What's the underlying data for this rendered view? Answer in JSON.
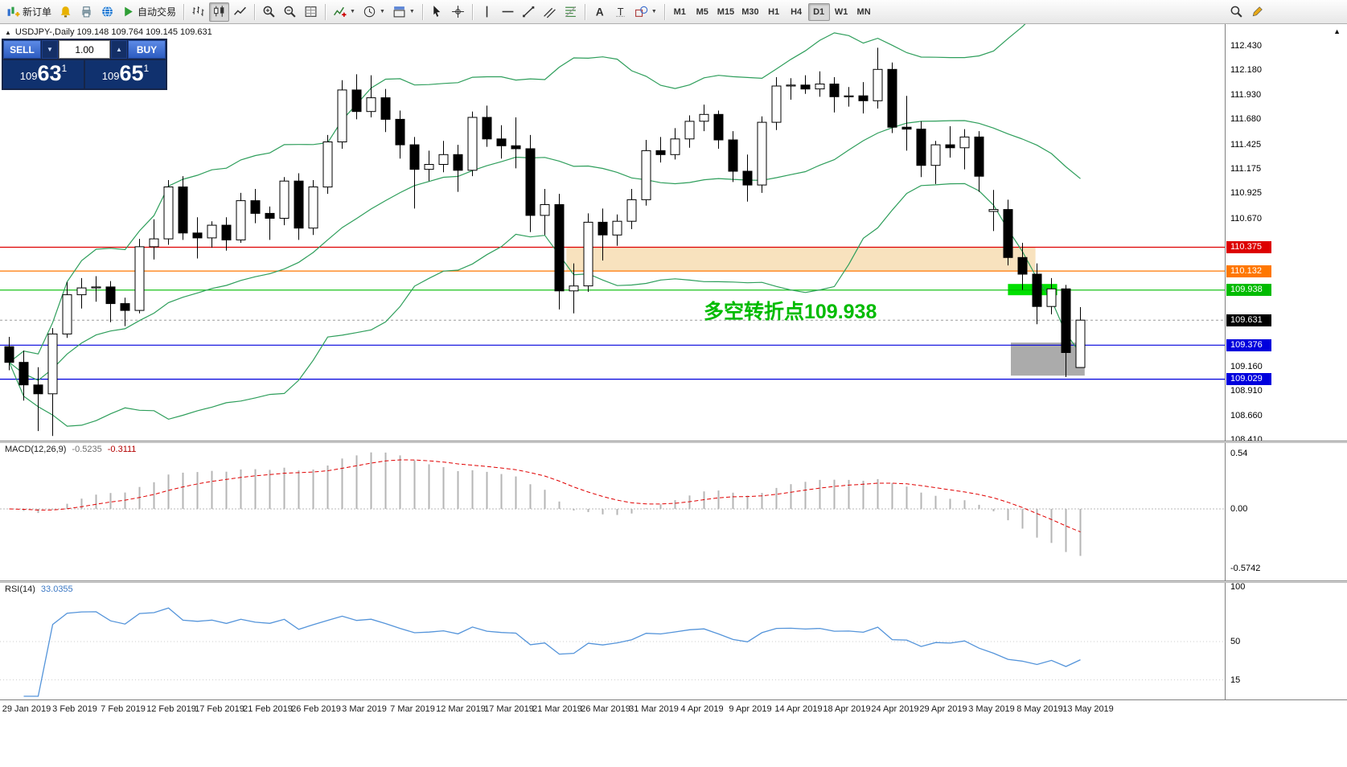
{
  "toolbar": {
    "caret_glyph": "▼",
    "groups": [
      {
        "name": "trade",
        "items": [
          {
            "name": "new-order",
            "icon": "new-order",
            "label": "新订单"
          },
          {
            "name": "alerts",
            "icon": "alert"
          },
          {
            "name": "print",
            "icon": "print"
          },
          {
            "name": "community",
            "icon": "globe"
          },
          {
            "name": "autotrading",
            "icon": "play",
            "label": "自动交易"
          }
        ]
      },
      {
        "name": "chart-type",
        "items": [
          {
            "name": "bar-chart",
            "icon": "bars"
          },
          {
            "name": "candlestick-chart",
            "icon": "candles",
            "active": true
          },
          {
            "name": "line-chart",
            "icon": "line"
          }
        ]
      },
      {
        "name": "zoom",
        "items": [
          {
            "name": "zoom-in",
            "icon": "zoom-in"
          },
          {
            "name": "zoom-out",
            "icon": "zoom-out"
          },
          {
            "name": "tile-windows",
            "icon": "grid"
          }
        ]
      },
      {
        "name": "insert",
        "items": [
          {
            "name": "indicators",
            "icon": "indicator",
            "caret": true
          },
          {
            "name": "periods",
            "icon": "clock",
            "caret": true
          },
          {
            "name": "templates",
            "icon": "template",
            "caret": true
          }
        ]
      },
      {
        "name": "pointer",
        "items": [
          {
            "name": "cursor",
            "icon": "cursor"
          },
          {
            "name": "crosshair",
            "icon": "crosshair"
          }
        ]
      },
      {
        "name": "draw",
        "items": [
          {
            "name": "vertical-line",
            "icon": "vline"
          },
          {
            "name": "horizontal-line",
            "icon": "hline"
          },
          {
            "name": "trendline",
            "icon": "trendline"
          },
          {
            "name": "equidistant-channel",
            "icon": "channel"
          },
          {
            "name": "fibonacci",
            "icon": "fibo"
          }
        ]
      },
      {
        "name": "text-tools",
        "items": [
          {
            "name": "text",
            "icon": "text-a"
          },
          {
            "name": "text-label",
            "icon": "label-t"
          },
          {
            "name": "shapes",
            "icon": "shapes",
            "caret": true
          }
        ]
      },
      {
        "name": "timeframes",
        "items": [
          {
            "name": "m1",
            "label": "M1"
          },
          {
            "name": "m5",
            "label": "M5"
          },
          {
            "name": "m15",
            "label": "M15"
          },
          {
            "name": "m30",
            "label": "M30"
          },
          {
            "name": "h1",
            "label": "H1"
          },
          {
            "name": "h4",
            "label": "H4"
          },
          {
            "name": "d1",
            "label": "D1",
            "active": true
          },
          {
            "name": "w1",
            "label": "W1"
          },
          {
            "name": "mn",
            "label": "MN"
          }
        ]
      },
      {
        "name": "right",
        "items": [
          {
            "name": "search",
            "icon": "magnifier"
          },
          {
            "name": "edit",
            "icon": "pencil"
          }
        ]
      }
    ]
  },
  "symbol_info": {
    "marker": "▲",
    "text": "USDJPY-,Daily  109.148 109.764 109.145 109.631"
  },
  "trade_panel": {
    "sell_label": "SELL",
    "buy_label": "BUY",
    "volume": "1.00",
    "down_glyph": "▼",
    "up_glyph": "▲",
    "sell_price_small": "109",
    "sell_price_big": "63",
    "sell_price_sup": "1",
    "buy_price_small": "109",
    "buy_price_big": "65",
    "buy_price_sup": "1"
  },
  "chart_data": {
    "type": "candlestick",
    "title": "USDJPY-,Daily",
    "ohlc_display": [
      "109.148",
      "109.764",
      "109.145",
      "109.631"
    ],
    "ylim": [
      108.35,
      112.65
    ],
    "x_labels": [
      "29 Jan 2019",
      "3 Feb 2019",
      "7 Feb 2019",
      "12 Feb 2019",
      "17 Feb 2019",
      "21 Feb 2019",
      "26 Feb 2019",
      "3 Mar 2019",
      "7 Mar 2019",
      "12 Mar 2019",
      "17 Mar 2019",
      "21 Mar 2019",
      "26 Mar 2019",
      "31 Mar 2019",
      "4 Apr 2019",
      "9 Apr 2019",
      "14 Apr 2019",
      "18 Apr 2019",
      "24 Apr 2019",
      "29 Apr 2019",
      "3 May 2019",
      "8 May 2019",
      "13 May 2019"
    ],
    "candles": [
      [
        109.36,
        109.46,
        109.12,
        109.2
      ],
      [
        109.2,
        109.32,
        108.81,
        108.97
      ],
      [
        108.97,
        109.15,
        108.5,
        108.88
      ],
      [
        108.88,
        109.55,
        108.45,
        109.49
      ],
      [
        109.49,
        110.02,
        109.45,
        109.89
      ],
      [
        109.89,
        110.06,
        109.75,
        109.96
      ],
      [
        109.96,
        110.08,
        109.82,
        109.97
      ],
      [
        109.97,
        110.03,
        109.61,
        109.8
      ],
      [
        109.8,
        109.86,
        109.57,
        109.73
      ],
      [
        109.73,
        110.46,
        109.7,
        110.38
      ],
      [
        110.38,
        110.66,
        110.25,
        110.46
      ],
      [
        110.46,
        111.06,
        110.4,
        110.99
      ],
      [
        110.99,
        111.1,
        110.45,
        110.52
      ],
      [
        110.52,
        110.68,
        110.26,
        110.47
      ],
      [
        110.47,
        110.64,
        110.37,
        110.6
      ],
      [
        110.6,
        110.68,
        110.34,
        110.45
      ],
      [
        110.45,
        110.93,
        110.42,
        110.85
      ],
      [
        110.85,
        110.97,
        110.62,
        110.72
      ],
      [
        110.72,
        110.79,
        110.45,
        110.67
      ],
      [
        110.67,
        111.09,
        110.6,
        111.05
      ],
      [
        111.05,
        111.13,
        110.45,
        110.57
      ],
      [
        110.57,
        111.06,
        110.5,
        110.99
      ],
      [
        110.99,
        111.52,
        110.92,
        111.45
      ],
      [
        111.45,
        112.08,
        111.38,
        111.98
      ],
      [
        111.98,
        112.14,
        111.68,
        111.76
      ],
      [
        111.76,
        112.13,
        111.7,
        111.9
      ],
      [
        111.9,
        111.99,
        111.55,
        111.68
      ],
      [
        111.68,
        111.77,
        111.28,
        111.42
      ],
      [
        111.42,
        111.5,
        110.77,
        111.17
      ],
      [
        111.17,
        111.36,
        111.05,
        111.22
      ],
      [
        111.22,
        111.46,
        111.14,
        111.32
      ],
      [
        111.32,
        111.42,
        110.94,
        111.16
      ],
      [
        111.16,
        111.76,
        111.1,
        111.7
      ],
      [
        111.7,
        111.82,
        111.4,
        111.48
      ],
      [
        111.48,
        111.62,
        111.28,
        111.41
      ],
      [
        111.41,
        111.7,
        111.18,
        111.38
      ],
      [
        111.38,
        111.52,
        110.53,
        110.7
      ],
      [
        110.7,
        110.97,
        110.5,
        110.81
      ],
      [
        110.81,
        110.92,
        109.74,
        109.93
      ],
      [
        109.93,
        110.21,
        109.7,
        109.98
      ],
      [
        109.98,
        110.72,
        109.92,
        110.63
      ],
      [
        110.63,
        110.77,
        110.24,
        110.5
      ],
      [
        110.5,
        110.71,
        110.39,
        110.64
      ],
      [
        110.64,
        110.97,
        110.56,
        110.86
      ],
      [
        110.86,
        111.47,
        110.8,
        111.36
      ],
      [
        111.36,
        111.5,
        111.24,
        111.32
      ],
      [
        111.32,
        111.59,
        111.27,
        111.48
      ],
      [
        111.48,
        111.72,
        111.39,
        111.66
      ],
      [
        111.66,
        111.83,
        111.56,
        111.73
      ],
      [
        111.73,
        111.77,
        111.38,
        111.47
      ],
      [
        111.47,
        111.56,
        111.04,
        111.15
      ],
      [
        111.15,
        111.32,
        110.84,
        111.01
      ],
      [
        111.01,
        111.71,
        110.93,
        111.65
      ],
      [
        111.65,
        112.11,
        111.57,
        112.02
      ],
      [
        112.02,
        112.1,
        111.88,
        112.03
      ],
      [
        112.03,
        112.13,
        111.94,
        111.99
      ],
      [
        111.99,
        112.17,
        111.91,
        112.04
      ],
      [
        112.04,
        112.11,
        111.75,
        111.91
      ],
      [
        111.91,
        112.01,
        111.81,
        111.92
      ],
      [
        111.92,
        112.06,
        111.74,
        111.87
      ],
      [
        111.87,
        112.41,
        111.79,
        112.19
      ],
      [
        112.19,
        112.26,
        111.54,
        111.6
      ],
      [
        111.6,
        111.92,
        111.36,
        111.58
      ],
      [
        111.58,
        111.66,
        111.09,
        111.21
      ],
      [
        111.21,
        111.46,
        111.02,
        111.42
      ],
      [
        111.42,
        111.61,
        111.29,
        111.39
      ],
      [
        111.39,
        111.58,
        111.17,
        111.5
      ],
      [
        111.5,
        111.56,
        110.94,
        111.1
      ],
      [
        110.74,
        110.96,
        110.54,
        110.76
      ],
      [
        110.76,
        110.86,
        110.19,
        110.27
      ],
      [
        110.27,
        110.42,
        109.94,
        110.1
      ],
      [
        110.1,
        110.21,
        109.59,
        109.77
      ],
      [
        109.77,
        110.06,
        109.69,
        109.95
      ],
      [
        109.95,
        109.99,
        109.05,
        109.3
      ],
      [
        109.148,
        109.764,
        109.145,
        109.631
      ]
    ],
    "indicators": {
      "bollinger": {
        "label": "Bollinger Bands(20,2)",
        "color": "#2E9E5B"
      }
    },
    "horizontal_lines": [
      {
        "price": 110.375,
        "label": "110.375",
        "color": "#DD0000"
      },
      {
        "price": 110.132,
        "label": "110.132",
        "color": "#FF7700"
      },
      {
        "price": 109.938,
        "label": "109.938",
        "color": "#00BB00"
      },
      {
        "price": 109.376,
        "label": "109.376",
        "color": "#0000DD"
      },
      {
        "price": 109.029,
        "label": "109.029",
        "color": "#0000DD"
      }
    ],
    "current_price": {
      "value": 109.631,
      "label": "109.631",
      "tag_color": "#000000"
    },
    "zones": [
      {
        "name": "supply-zone",
        "bar1": 38.8,
        "bar2": 71.2,
        "price_top": 110.375,
        "price_bottom": 110.132,
        "color": "#F8E2BE"
      },
      {
        "name": "target-box",
        "bar1": 69.5,
        "bar2": 74.6,
        "price_top": 109.402,
        "price_bottom": 109.065,
        "color": "#ABABAB"
      },
      {
        "name": "pivot-highlight",
        "bar1": 69.3,
        "bar2": 72.7,
        "price_top": 110.0,
        "price_bottom": 109.885,
        "color": "#00E000"
      }
    ],
    "annotation": {
      "text": "多空转折点109.938",
      "bar": 48.3,
      "price": 109.66,
      "color": "#00BB00"
    },
    "price_axis": {
      "scroll_marker": "▲",
      "ticks": [
        "112.430",
        "112.180",
        "111.930",
        "111.680",
        "111.425",
        "111.175",
        "110.925",
        "110.670",
        "109.160",
        "108.910",
        "108.660",
        "108.410"
      ]
    },
    "macd": {
      "title": "MACD(12,26,9)",
      "value_main": "-0.5235",
      "value_signal": "-0.3111",
      "axis_labels": [
        "0.54",
        "0.00",
        "-0.5742"
      ],
      "histogram_color": "#B5B5B5",
      "signal_color": "#E00000"
    },
    "rsi": {
      "title": "RSI(14)",
      "value": "33.0355",
      "axis_labels": [
        "100",
        "50",
        "15"
      ],
      "levels": [
        50,
        15
      ],
      "color": "#5494DA"
    }
  }
}
